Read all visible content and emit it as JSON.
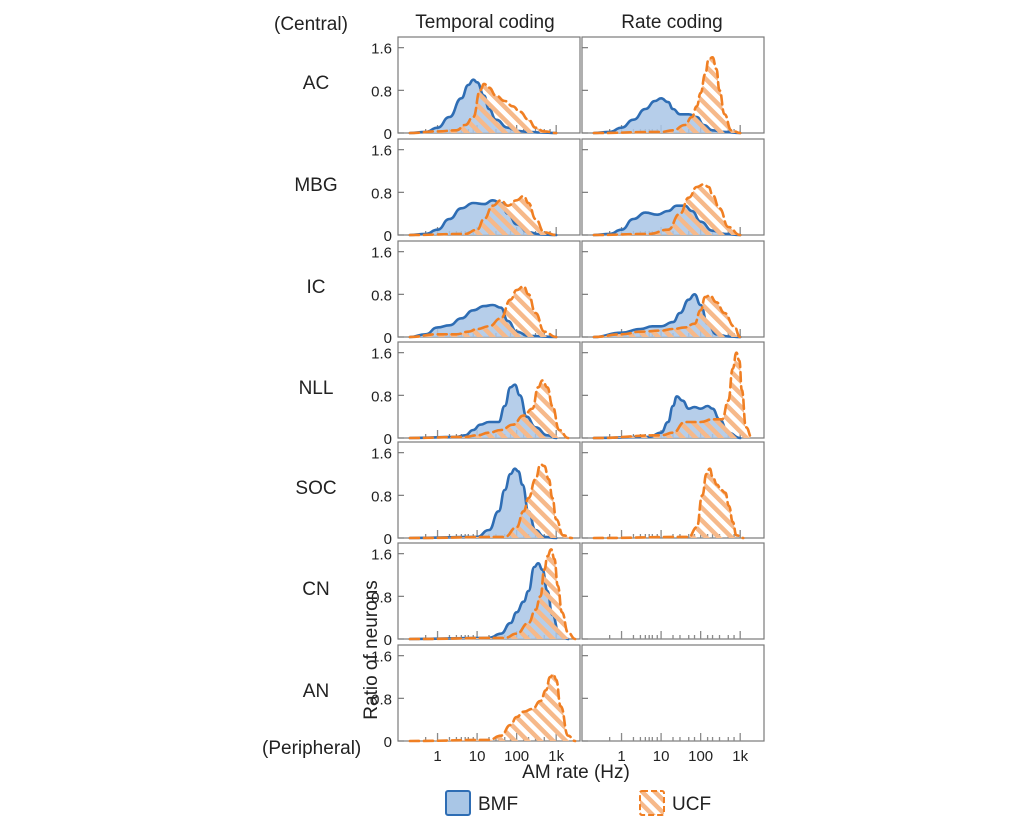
{
  "labels": {
    "top_region": "(Central)",
    "bottom_region": "(Peripheral)",
    "col_temporal": "Temporal coding",
    "col_rate": "Rate coding",
    "y_axis": "Ratio of neurons",
    "x_axis": "AM rate (Hz)"
  },
  "legend": {
    "bmf": "BMF",
    "ucf": "UCF"
  },
  "colors": {
    "bmf_line": "#2e6db4",
    "bmf_fill": "#a9c6e6",
    "ucf_line": "#f07f23",
    "ucf_hatch": "#f6b98a",
    "frame": "#7a7a7a",
    "rug": "#8a8a8a"
  },
  "chart_data": {
    "type": "area",
    "x_scale": "log",
    "xlim": [
      0.1,
      4000
    ],
    "ylim": [
      0,
      1.8
    ],
    "xticks": [
      1,
      10,
      100,
      1000
    ],
    "xtick_labels": [
      "1",
      "10",
      "100",
      "1k"
    ],
    "yticks": [
      0,
      0.8,
      1.6
    ],
    "ytick_labels": [
      "0",
      "0.8",
      "1.6"
    ],
    "rug_x": [
      0.5,
      1,
      2,
      3,
      4,
      5,
      6,
      8,
      10,
      20,
      30,
      50,
      70,
      100,
      150,
      200,
      300,
      500,
      700,
      1000
    ],
    "rows": [
      "AC",
      "MBG",
      "IC",
      "NLL",
      "SOC",
      "CN",
      "AN"
    ],
    "series": [
      {
        "name": "BMF",
        "row": "AC",
        "column": "Temporal coding",
        "x": [
          0.2,
          0.5,
          1,
          2,
          4,
          6,
          8,
          10,
          15,
          20,
          30,
          60,
          100,
          200,
          400,
          1000
        ],
        "y": [
          0,
          0.02,
          0.1,
          0.3,
          0.65,
          0.9,
          1.0,
          0.95,
          0.7,
          0.45,
          0.25,
          0.1,
          0.04,
          0.02,
          0.01,
          0
        ]
      },
      {
        "name": "UCF",
        "row": "AC",
        "column": "Temporal coding",
        "x": [
          0.2,
          1,
          3,
          5,
          8,
          12,
          15,
          20,
          30,
          50,
          80,
          120,
          200,
          300,
          500,
          1000
        ],
        "y": [
          0,
          0.03,
          0.05,
          0.15,
          0.3,
          0.8,
          0.92,
          0.85,
          0.7,
          0.6,
          0.5,
          0.4,
          0.25,
          0.1,
          0.03,
          0
        ]
      },
      {
        "name": "BMF",
        "row": "AC",
        "column": "Rate coding",
        "x": [
          0.2,
          0.5,
          1,
          2,
          4,
          7,
          10,
          15,
          20,
          30,
          50,
          80,
          120,
          200,
          400,
          1000
        ],
        "y": [
          0,
          0.02,
          0.1,
          0.25,
          0.45,
          0.6,
          0.65,
          0.58,
          0.45,
          0.35,
          0.35,
          0.3,
          0.15,
          0.05,
          0.02,
          0
        ]
      },
      {
        "name": "UCF",
        "row": "AC",
        "column": "Rate coding",
        "x": [
          0.2,
          10,
          20,
          40,
          60,
          80,
          100,
          130,
          160,
          200,
          250,
          300,
          400,
          600,
          1000
        ],
        "y": [
          0,
          0.02,
          0.05,
          0.15,
          0.3,
          0.5,
          0.75,
          1.1,
          1.38,
          1.42,
          1.2,
          0.8,
          0.35,
          0.05,
          0
        ]
      },
      {
        "name": "BMF",
        "row": "MBG",
        "column": "Temporal coding",
        "x": [
          0.2,
          0.5,
          1,
          2,
          4,
          8,
          15,
          25,
          40,
          60,
          100,
          200,
          400,
          1000
        ],
        "y": [
          0,
          0.02,
          0.1,
          0.3,
          0.5,
          0.6,
          0.58,
          0.65,
          0.6,
          0.4,
          0.2,
          0.05,
          0.01,
          0
        ]
      },
      {
        "name": "UCF",
        "row": "MBG",
        "column": "Temporal coding",
        "x": [
          0.2,
          5,
          10,
          15,
          25,
          40,
          60,
          100,
          150,
          200,
          300,
          500,
          1000
        ],
        "y": [
          0,
          0.02,
          0.1,
          0.3,
          0.55,
          0.65,
          0.55,
          0.65,
          0.73,
          0.6,
          0.3,
          0.05,
          0
        ]
      },
      {
        "name": "BMF",
        "row": "MBG",
        "column": "Rate coding",
        "x": [
          0.2,
          0.5,
          1,
          2,
          4,
          8,
          15,
          25,
          40,
          60,
          100,
          200,
          400,
          1000
        ],
        "y": [
          0,
          0.02,
          0.1,
          0.3,
          0.42,
          0.38,
          0.45,
          0.55,
          0.55,
          0.45,
          0.25,
          0.08,
          0.02,
          0
        ]
      },
      {
        "name": "UCF",
        "row": "MBG",
        "column": "Rate coding",
        "x": [
          0.2,
          5,
          15,
          30,
          50,
          80,
          120,
          160,
          200,
          300,
          500,
          1000
        ],
        "y": [
          0,
          0.02,
          0.1,
          0.4,
          0.7,
          0.9,
          0.95,
          0.9,
          0.75,
          0.5,
          0.15,
          0
        ]
      },
      {
        "name": "BMF",
        "row": "IC",
        "column": "Temporal coding",
        "x": [
          0.2,
          0.5,
          1,
          2,
          4,
          8,
          15,
          25,
          40,
          60,
          100,
          200,
          1000
        ],
        "y": [
          0,
          0.05,
          0.18,
          0.22,
          0.35,
          0.5,
          0.58,
          0.6,
          0.55,
          0.3,
          0.1,
          0.02,
          0
        ]
      },
      {
        "name": "UCF",
        "row": "IC",
        "column": "Temporal coding",
        "x": [
          0.2,
          1,
          3,
          6,
          10,
          20,
          40,
          70,
          100,
          150,
          200,
          300,
          500,
          1000
        ],
        "y": [
          0,
          0.05,
          0.05,
          0.1,
          0.15,
          0.2,
          0.35,
          0.7,
          0.88,
          0.95,
          0.8,
          0.45,
          0.1,
          0
        ]
      },
      {
        "name": "BMF",
        "row": "IC",
        "column": "Rate coding",
        "x": [
          0.2,
          1,
          3,
          6,
          10,
          20,
          30,
          50,
          70,
          100,
          150,
          250,
          500,
          1000
        ],
        "y": [
          0,
          0.08,
          0.15,
          0.2,
          0.2,
          0.28,
          0.45,
          0.7,
          0.8,
          0.6,
          0.25,
          0.05,
          0.01,
          0
        ]
      },
      {
        "name": "UCF",
        "row": "IC",
        "column": "Rate coding",
        "x": [
          0.2,
          1,
          3,
          10,
          20,
          40,
          70,
          100,
          130,
          170,
          250,
          400,
          700,
          1000
        ],
        "y": [
          0,
          0.05,
          0.1,
          0.12,
          0.15,
          0.18,
          0.25,
          0.5,
          0.75,
          0.78,
          0.65,
          0.45,
          0.2,
          0
        ]
      },
      {
        "name": "BMF",
        "row": "NLL",
        "column": "Temporal coding",
        "x": [
          0.2,
          3,
          5,
          8,
          12,
          20,
          35,
          50,
          70,
          90,
          120,
          180,
          300,
          600,
          1000
        ],
        "y": [
          0,
          0.02,
          0.05,
          0.15,
          0.25,
          0.3,
          0.3,
          0.6,
          0.95,
          1.0,
          0.8,
          0.4,
          0.2,
          0.05,
          0
        ]
      },
      {
        "name": "UCF",
        "row": "NLL",
        "column": "Temporal coding",
        "x": [
          0.2,
          5,
          10,
          20,
          40,
          80,
          150,
          250,
          350,
          450,
          600,
          800,
          1200,
          2000
        ],
        "y": [
          0,
          0.02,
          0.05,
          0.1,
          0.15,
          0.25,
          0.42,
          0.55,
          0.95,
          1.08,
          0.95,
          0.6,
          0.15,
          0
        ]
      },
      {
        "name": "BMF",
        "row": "NLL",
        "column": "Rate coding",
        "x": [
          0.2,
          5,
          10,
          15,
          20,
          25,
          35,
          50,
          70,
          100,
          150,
          200,
          300,
          500,
          1000
        ],
        "y": [
          0,
          0.02,
          0.1,
          0.3,
          0.6,
          0.78,
          0.7,
          0.55,
          0.58,
          0.55,
          0.6,
          0.55,
          0.35,
          0.1,
          0
        ]
      },
      {
        "name": "UCF",
        "row": "NLL",
        "column": "Rate coding",
        "x": [
          0.2,
          10,
          20,
          40,
          100,
          200,
          350,
          500,
          650,
          800,
          950,
          1100,
          1400,
          2000
        ],
        "y": [
          0,
          0.05,
          0.1,
          0.3,
          0.3,
          0.35,
          0.35,
          0.7,
          1.3,
          1.6,
          1.45,
          0.9,
          0.2,
          0
        ]
      },
      {
        "name": "BMF",
        "row": "SOC",
        "column": "Temporal coding",
        "x": [
          0.2,
          10,
          20,
          35,
          50,
          70,
          90,
          110,
          140,
          200,
          300,
          500,
          1000
        ],
        "y": [
          0,
          0.02,
          0.15,
          0.5,
          0.9,
          1.2,
          1.3,
          1.25,
          1.0,
          0.5,
          0.15,
          0.02,
          0
        ]
      },
      {
        "name": "UCF",
        "row": "SOC",
        "column": "Temporal coding",
        "x": [
          0.2,
          50,
          100,
          150,
          200,
          300,
          400,
          500,
          650,
          800,
          1000,
          1500,
          2500
        ],
        "y": [
          0,
          0.02,
          0.2,
          0.5,
          0.75,
          1.1,
          1.38,
          1.35,
          1.1,
          0.75,
          0.35,
          0.05,
          0
        ]
      },
      {
        "name": "UCF",
        "row": "SOC",
        "column": "Rate coding",
        "x": [
          0.2,
          50,
          80,
          110,
          140,
          170,
          200,
          260,
          330,
          420,
          520,
          650,
          800,
          1200
        ],
        "y": [
          0,
          0.02,
          0.2,
          0.8,
          1.2,
          1.3,
          1.15,
          1.0,
          0.9,
          0.85,
          0.6,
          0.3,
          0.05,
          0
        ]
      },
      {
        "name": "BMF",
        "row": "CN",
        "column": "Temporal coding",
        "x": [
          0.2,
          20,
          40,
          70,
          100,
          150,
          200,
          280,
          350,
          450,
          600,
          800,
          1200,
          2000
        ],
        "y": [
          0,
          0.02,
          0.1,
          0.3,
          0.5,
          0.7,
          0.9,
          1.35,
          1.42,
          1.3,
          0.9,
          0.45,
          0.1,
          0
        ]
      },
      {
        "name": "UCF",
        "row": "CN",
        "column": "Temporal coding",
        "x": [
          0.2,
          50,
          100,
          200,
          300,
          400,
          500,
          600,
          750,
          900,
          1100,
          1400,
          2000,
          3000
        ],
        "y": [
          0,
          0.02,
          0.1,
          0.3,
          0.55,
          0.8,
          1.3,
          1.55,
          1.68,
          1.5,
          1.0,
          0.5,
          0.12,
          0
        ]
      },
      {
        "name": "UCF",
        "row": "AN",
        "column": "Temporal coding",
        "x": [
          0.2,
          20,
          40,
          70,
          100,
          150,
          250,
          400,
          550,
          700,
          850,
          1000,
          1300,
          2000,
          3000
        ],
        "y": [
          0,
          0.02,
          0.1,
          0.3,
          0.45,
          0.55,
          0.6,
          0.75,
          0.95,
          1.2,
          1.25,
          1.15,
          0.65,
          0.1,
          0
        ]
      }
    ]
  }
}
